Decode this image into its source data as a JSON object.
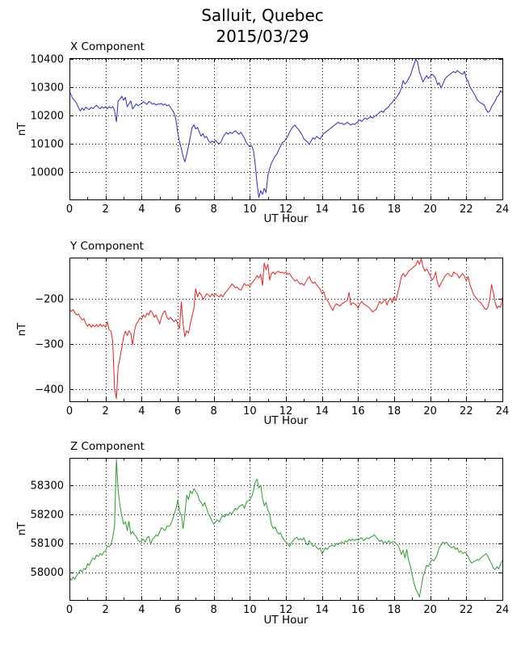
{
  "figure": {
    "title_line1": "Salluit, Quebec",
    "title_line2": "2015/03/29",
    "background_color": "#ffffff",
    "text_color": "#000000",
    "grid_color": "#000000",
    "grid_style": "dotted"
  },
  "chart_data": [
    {
      "type": "line",
      "title": "X Component",
      "xlabel": "UT Hour",
      "ylabel": "nT",
      "grid": true,
      "legend": null,
      "xlim": [
        0,
        24
      ],
      "ylim": [
        9903,
        10403
      ],
      "xticks": [
        0,
        2,
        4,
        6,
        8,
        10,
        12,
        14,
        16,
        18,
        20,
        22,
        24
      ],
      "xticks_minor": [
        1,
        3,
        5,
        7,
        9,
        11,
        13,
        15,
        17,
        19,
        21,
        23
      ],
      "yticks": [
        10000,
        10100,
        10200,
        10300,
        10400
      ],
      "x_start": 0,
      "x_step": 0.1,
      "series": [
        {
          "name": "X",
          "color": "#2b2bd0",
          "values": [
            10285,
            10272,
            10258,
            10252,
            10243,
            10228,
            10216,
            10226,
            10219,
            10230,
            10224,
            10221,
            10229,
            10224,
            10231,
            10236,
            10229,
            10224,
            10231,
            10226,
            10231,
            10224,
            10231,
            10226,
            10232,
            10218,
            10178,
            10252,
            10258,
            10268,
            10254,
            10264,
            10231,
            10241,
            10252,
            10223,
            10232,
            10241,
            10234,
            10239,
            10243,
            10248,
            10244,
            10239,
            10250,
            10246,
            10240,
            10243,
            10237,
            10241,
            10240,
            10243,
            10237,
            10241,
            10234,
            10238,
            10229,
            10219,
            10209,
            10185,
            10140,
            10108,
            10083,
            10055,
            10036,
            10062,
            10092,
            10125,
            10158,
            10167,
            10152,
            10158,
            10141,
            10127,
            10136,
            10121,
            10126,
            10112,
            10103,
            10110,
            10105,
            10112,
            10104,
            10100,
            10106,
            10121,
            10133,
            10140,
            10134,
            10141,
            10136,
            10141,
            10146,
            10139,
            10134,
            10141,
            10131,
            10119,
            10104,
            10096,
            10089,
            10094,
            10076,
            10028,
            9958,
            9910,
            9934,
            9921,
            9942,
            9928,
            9989,
            10012,
            10032,
            10044,
            10056,
            10063,
            10079,
            10091,
            10104,
            10108,
            10117,
            10126,
            10141,
            10152,
            10161,
            10166,
            10157,
            10151,
            10141,
            10131,
            10117,
            10111,
            10106,
            10097,
            10111,
            10121,
            10116,
            10126,
            10121,
            10116,
            10129,
            10136,
            10141,
            10146,
            10151,
            10156,
            10161,
            10166,
            10171,
            10176,
            10171,
            10173,
            10168,
            10171,
            10176,
            10171,
            10166,
            10171,
            10168,
            10173,
            10179,
            10184,
            10179,
            10186,
            10191,
            10186,
            10191,
            10196,
            10191,
            10196,
            10201,
            10206,
            10211,
            10216,
            10211,
            10221,
            10226,
            10231,
            10241,
            10246,
            10256,
            10261,
            10271,
            10281,
            10296,
            10324,
            10311,
            10319,
            10331,
            10341,
            10361,
            10381,
            10399,
            10389,
            10354,
            10336,
            10319,
            10331,
            10341,
            10331,
            10339,
            10346,
            10341,
            10331,
            10309,
            10316,
            10297,
            10311,
            10326,
            10336,
            10341,
            10346,
            10351,
            10356,
            10351,
            10359,
            10354,
            10349,
            10346,
            10356,
            10331,
            10321,
            10301,
            10291,
            10281,
            10269,
            10256,
            10249,
            10244,
            10241,
            10236,
            10221,
            10211,
            10216,
            10231,
            10241,
            10251,
            10266,
            10272,
            10288,
            10281
          ]
        }
      ]
    },
    {
      "type": "line",
      "title": "Y Component",
      "xlabel": "UT Hour",
      "ylabel": "nT",
      "grid": true,
      "legend": null,
      "xlim": [
        0,
        24
      ],
      "ylim": [
        -427,
        -109
      ],
      "xticks": [
        0,
        2,
        4,
        6,
        8,
        10,
        12,
        14,
        16,
        18,
        20,
        22,
        24
      ],
      "xticks_minor": [
        1,
        3,
        5,
        7,
        9,
        11,
        13,
        15,
        17,
        19,
        21,
        23
      ],
      "yticks": [
        -400,
        -300,
        -200
      ],
      "x_start": 0,
      "x_step": 0.1,
      "series": [
        {
          "name": "Y",
          "color": "#f01f1f",
          "values": [
            -222,
            -228,
            -224,
            -231,
            -236,
            -234,
            -241,
            -247,
            -244,
            -254,
            -261,
            -256,
            -263,
            -258,
            -262,
            -257,
            -262,
            -256,
            -261,
            -258,
            -263,
            -251,
            -269,
            -271,
            -295,
            -398,
            -421,
            -351,
            -331,
            -309,
            -284,
            -272,
            -281,
            -271,
            -276,
            -302,
            -272,
            -256,
            -251,
            -242,
            -246,
            -236,
            -241,
            -232,
            -236,
            -226,
            -231,
            -241,
            -236,
            -246,
            -256,
            -241,
            -231,
            -227,
            -241,
            -246,
            -241,
            -246,
            -251,
            -246,
            -256,
            -266,
            -207,
            -256,
            -284,
            -271,
            -276,
            -256,
            -237,
            -221,
            -178,
            -196,
            -186,
            -191,
            -201,
            -196,
            -189,
            -191,
            -196,
            -189,
            -194,
            -189,
            -193,
            -196,
            -191,
            -196,
            -189,
            -184,
            -179,
            -174,
            -167,
            -171,
            -176,
            -174,
            -179,
            -181,
            -174,
            -166,
            -171,
            -169,
            -173,
            -166,
            -161,
            -156,
            -149,
            -154,
            -146,
            -171,
            -121,
            -136,
            -124,
            -159,
            -144,
            -141,
            -146,
            -141,
            -139,
            -143,
            -141,
            -144,
            -141,
            -146,
            -144,
            -151,
            -156,
            -161,
            -158,
            -163,
            -168,
            -166,
            -171,
            -163,
            -156,
            -151,
            -161,
            -166,
            -163,
            -169,
            -174,
            -179,
            -189,
            -184,
            -199,
            -204,
            -211,
            -219,
            -226,
            -216,
            -211,
            -214,
            -216,
            -211,
            -209,
            -206,
            -204,
            -186,
            -214,
            -209,
            -211,
            -214,
            -221,
            -211,
            -206,
            -211,
            -214,
            -216,
            -219,
            -224,
            -229,
            -226,
            -224,
            -214,
            -206,
            -211,
            -206,
            -201,
            -214,
            -204,
            -199,
            -209,
            -196,
            -204,
            -186,
            -171,
            -151,
            -144,
            -151,
            -146,
            -139,
            -136,
            -133,
            -129,
            -126,
            -116,
            -124,
            -111,
            -129,
            -139,
            -134,
            -141,
            -149,
            -159,
            -154,
            -141,
            -164,
            -174,
            -166,
            -159,
            -151,
            -146,
            -144,
            -149,
            -151,
            -141,
            -144,
            -146,
            -154,
            -149,
            -144,
            -151,
            -161,
            -151,
            -169,
            -179,
            -191,
            -196,
            -201,
            -206,
            -209,
            -214,
            -221,
            -224,
            -219,
            -201,
            -169,
            -186,
            -209,
            -221,
            -216,
            -219,
            -197
          ]
        }
      ]
    },
    {
      "type": "line",
      "title": "Z Component",
      "xlabel": "UT Hour",
      "ylabel": "nT",
      "grid": true,
      "legend": null,
      "xlim": [
        0,
        24
      ],
      "ylim": [
        57904,
        58395
      ],
      "xticks": [
        0,
        2,
        4,
        6,
        8,
        10,
        12,
        14,
        16,
        18,
        20,
        22,
        24
      ],
      "xticks_minor": [
        1,
        3,
        5,
        7,
        9,
        11,
        13,
        15,
        17,
        19,
        21,
        23
      ],
      "yticks": [
        58000,
        58100,
        58200,
        58300
      ],
      "x_start": 0,
      "x_step": 0.1,
      "series": [
        {
          "name": "Z",
          "color": "#2e9b2e",
          "values": [
            57984,
            57972,
            57983,
            57976,
            57989,
            57996,
            58008,
            58001,
            58013,
            58009,
            58029,
            58024,
            58039,
            58049,
            58044,
            58059,
            58054,
            58064,
            58059,
            58069,
            58074,
            58091,
            58087,
            58096,
            58119,
            58160,
            58390,
            58280,
            58230,
            58195,
            58166,
            58174,
            58144,
            58176,
            58131,
            58141,
            58129,
            58124,
            58111,
            58104,
            58109,
            58114,
            58104,
            58119,
            58124,
            58096,
            58114,
            58119,
            58129,
            58124,
            58139,
            58154,
            58149,
            58144,
            58159,
            58158,
            58164,
            58179,
            58199,
            58219,
            58249,
            58211,
            58198,
            58151,
            58201,
            58266,
            58251,
            58281,
            58271,
            58289,
            58279,
            58269,
            58249,
            58241,
            58229,
            58241,
            58221,
            58201,
            58191,
            58176,
            58166,
            58174,
            58181,
            58174,
            58186,
            58196,
            58191,
            58201,
            58196,
            58206,
            58201,
            58211,
            58221,
            58216,
            58226,
            58231,
            58234,
            58221,
            58241,
            58246,
            58251,
            58261,
            58281,
            58311,
            58321,
            58291,
            58301,
            58256,
            58229,
            58241,
            58214,
            58201,
            58164,
            58151,
            58156,
            58141,
            58131,
            58136,
            58121,
            58111,
            58104,
            58099,
            58089,
            58101,
            58109,
            58116,
            58121,
            58111,
            58116,
            58111,
            58119,
            58101,
            58094,
            58109,
            58099,
            58089,
            58094,
            58086,
            58079,
            58084,
            58063,
            58074,
            58084,
            58079,
            58089,
            58091,
            58094,
            58089,
            58099,
            58096,
            58101,
            58104,
            58099,
            58109,
            58104,
            58113,
            58109,
            58114,
            58109,
            58114,
            58111,
            58116,
            58119,
            58109,
            58114,
            58119,
            58116,
            58121,
            58124,
            58129,
            58121,
            58114,
            58106,
            58111,
            58101,
            58106,
            58099,
            58109,
            58101,
            58104,
            58106,
            58099,
            58094,
            58081,
            58061,
            58076,
            58049,
            58079,
            58041,
            58021,
            57991,
            57961,
            57941,
            57929,
            57914,
            57949,
            57984,
            58004,
            58024,
            58019,
            58034,
            58044,
            58039,
            58049,
            58064,
            58084,
            58094,
            58104,
            58099,
            58104,
            58094,
            58089,
            58084,
            58089,
            58079,
            58084,
            58069,
            58074,
            58064,
            58069,
            58064,
            58054,
            58041,
            58031,
            58036,
            58039,
            58044,
            58041,
            58049,
            58054,
            58059,
            58064,
            58054,
            58041,
            58029,
            58014,
            58009,
            58019,
            58011,
            58029,
            58041
          ]
        }
      ]
    }
  ]
}
